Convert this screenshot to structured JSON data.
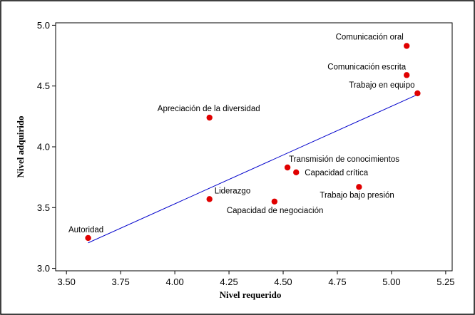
{
  "chart_data": {
    "type": "scatter",
    "title": "",
    "xlabel": "Nivel requerido",
    "ylabel": "Nivel adquirido",
    "xlim": [
      3.45,
      5.28
    ],
    "ylim": [
      2.98,
      5.02
    ],
    "x_ticks": [
      "3.50",
      "3.75",
      "4.00",
      "4.25",
      "4.50",
      "4.75",
      "5.00",
      "5.25"
    ],
    "y_ticks": [
      "3.0",
      "3.5",
      "4.0",
      "4.5",
      "5.0"
    ],
    "grid": false,
    "point_color": "#e00000",
    "line_color": "#0000cc",
    "points": [
      {
        "label": "Comunicación oral",
        "x": 5.07,
        "y": 4.83
      },
      {
        "label": "Comunicación escrita",
        "x": 5.07,
        "y": 4.59
      },
      {
        "label": "Trabajo en equipo",
        "x": 5.12,
        "y": 4.44
      },
      {
        "label": "Apreciación de la diversidad",
        "x": 4.16,
        "y": 4.24
      },
      {
        "label": "Transmisión de conocimientos",
        "x": 4.52,
        "y": 3.83
      },
      {
        "label": "Capacidad crítica",
        "x": 4.56,
        "y": 3.79
      },
      {
        "label": "Trabajo bajo presión",
        "x": 4.85,
        "y": 3.67
      },
      {
        "label": "Liderazgo",
        "x": 4.16,
        "y": 3.57
      },
      {
        "label": "Capacidad de negociación",
        "x": 4.46,
        "y": 3.55
      },
      {
        "label": "Autoridad",
        "x": 3.6,
        "y": 3.25
      }
    ],
    "trend_line": {
      "x": [
        3.6,
        5.12
      ],
      "y": [
        3.21,
        4.43
      ]
    }
  }
}
